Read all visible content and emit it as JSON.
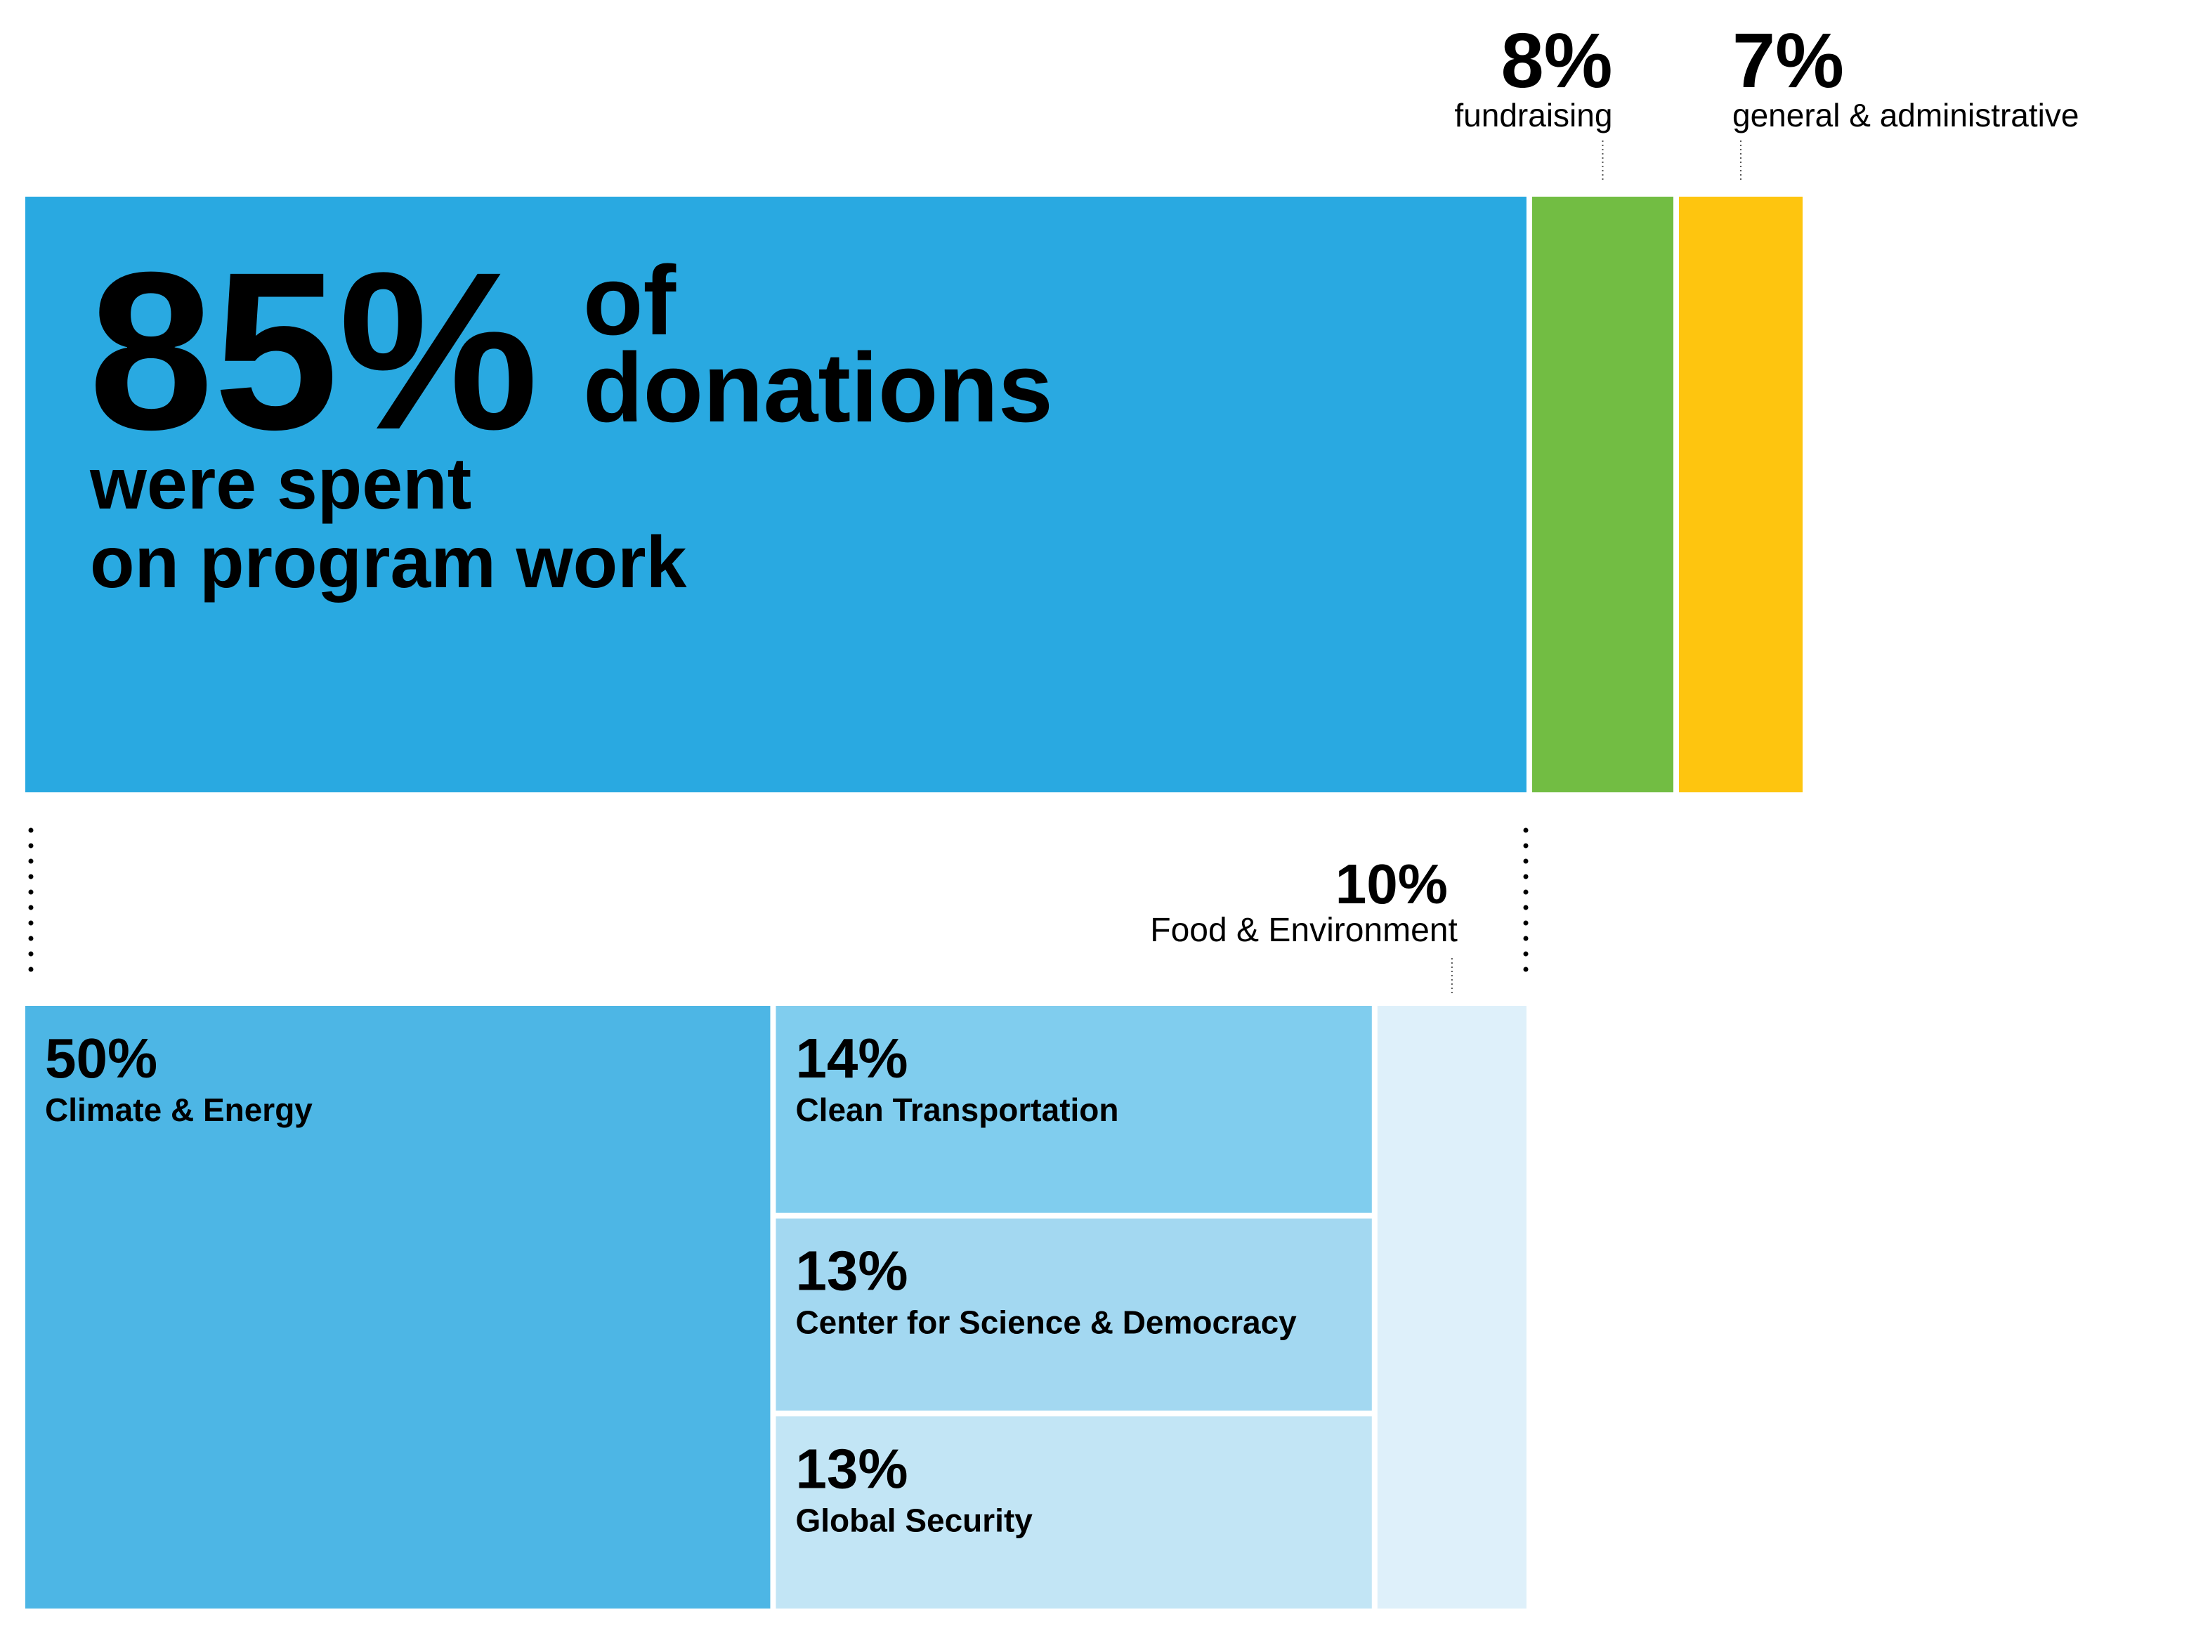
{
  "chart_data": [
    {
      "type": "treemap-row",
      "headline": [
        "of",
        "donations"
      ],
      "subheadline": [
        "were spent",
        "on program work"
      ],
      "categories": [
        null,
        "fundraising",
        "general & administrative"
      ],
      "values": [
        85,
        8,
        7
      ],
      "value_labels": [
        "85%",
        "8%",
        "7%"
      ],
      "colors": [
        "#29a9e1",
        "#72bd43",
        "#fec50f"
      ]
    },
    {
      "type": "treemap-program",
      "categories": [
        "Climate & Energy",
        "Clean Transportation",
        "Center for Science & Democracy",
        "Global Security",
        "Food & Environment"
      ],
      "values": [
        50,
        14,
        13,
        13,
        10
      ],
      "value_labels": [
        "50%",
        "14%",
        "13%",
        "13%",
        "10%"
      ],
      "colors": [
        "#4db6e5",
        "#80cdee",
        "#a3d8f1",
        "#c2e5f5",
        "#def0fa"
      ]
    }
  ]
}
